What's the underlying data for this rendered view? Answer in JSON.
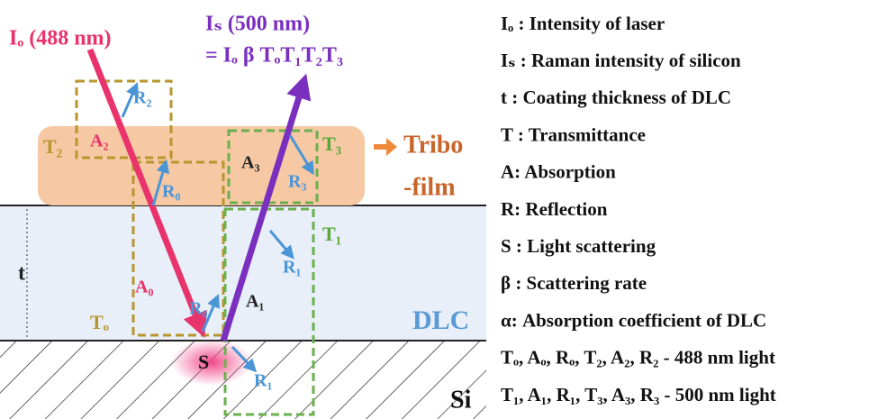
{
  "diagram": {
    "incident": "Iₒ (488 nm)",
    "scattered": "Iₛ (500 nm)",
    "equation": "= Iₒ β TₒT₁T₂T₃",
    "labels": {
      "r2": "R₂",
      "a2": "A₂",
      "t2": "T₂",
      "r0_top": "R₀",
      "a3": "A₃",
      "t3": "T₃",
      "r3": "R₃",
      "tribo": "Tribo",
      "film": "-film",
      "t": "t",
      "a0": "A₀",
      "t0": "Tₒ",
      "r0": "R₀",
      "a1": "A₁",
      "r1": "R₁",
      "t1": "T₁",
      "dlc": "DLC",
      "s": "S",
      "r1_bottom": "R₁",
      "si": "Si"
    }
  },
  "legend": [
    "Iₒ : Intensity of laser",
    "Iₛ : Raman intensity of silicon",
    "t : Coating thickness of DLC",
    "T : Transmittance",
    "A: Absorption",
    "R: Reflection",
    "S : Light scattering",
    "β : Scattering rate",
    "α: Absorption coefficient of DLC",
    "Tₒ, Aₒ, Rₒ, T₂, A₂, R₂ - 488 nm light",
    "T₁, A₁, R₁, T₃, A₃, R₃ - 500 nm light"
  ]
}
